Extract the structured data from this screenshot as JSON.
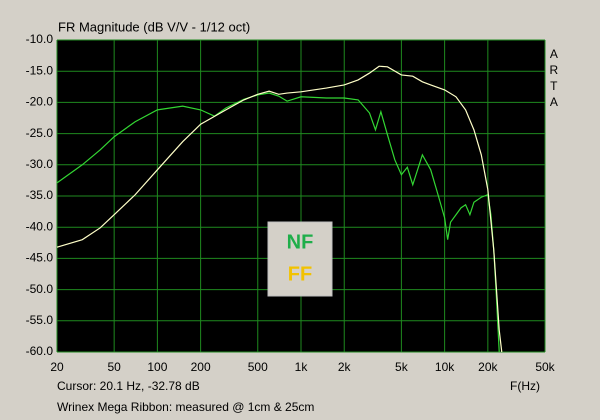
{
  "chart_data": {
    "type": "line",
    "title": "FR Magnitude (dB V/V - 1/12 oct)",
    "side_label": "ARTA",
    "x_label": "F(Hz)",
    "annotations": [
      "Cursor: 20.1 Hz, -32.78 dB",
      "Wrinex Mega Ribbon: measured @ 1cm & 25cm"
    ],
    "xscale": "log",
    "xlim": [
      20,
      50000
    ],
    "xticks": [
      20,
      50,
      100,
      200,
      500,
      {
        "value": 1000,
        "label": "1k"
      },
      {
        "value": 2000,
        "label": "2k"
      },
      {
        "value": 5000,
        "label": "5k"
      },
      {
        "value": 10000,
        "label": "10k"
      },
      {
        "value": 20000,
        "label": "20k"
      },
      {
        "value": 50000,
        "label": "50k"
      }
    ],
    "ylim": [
      -60,
      -10
    ],
    "yticks": [
      {
        "value": -60,
        "label": "-60.0"
      },
      {
        "value": -55,
        "label": "-55.0"
      },
      {
        "value": -50,
        "label": "-50.0"
      },
      {
        "value": -45,
        "label": "-45.0"
      },
      {
        "value": -40,
        "label": "-40.0"
      },
      {
        "value": -35,
        "label": "-35.0"
      },
      {
        "value": -30,
        "label": "-30.0"
      },
      {
        "value": -25,
        "label": "-25.0"
      },
      {
        "value": -20,
        "label": "-20.0"
      },
      {
        "value": -15,
        "label": "-15.0"
      },
      {
        "value": -10,
        "label": "-10.0"
      }
    ],
    "grid": true,
    "series": [
      {
        "name": "NF",
        "color": "#33d633",
        "label_color": "#1fae4a",
        "x": [
          20,
          30,
          40,
          50,
          70,
          100,
          150,
          200,
          250,
          300,
          400,
          500,
          600,
          700,
          800,
          1000,
          1500,
          2000,
          2500,
          3000,
          3300,
          3600,
          4000,
          4500,
          5000,
          5500,
          6000,
          7000,
          8000,
          9000,
          10000,
          10500,
          11000,
          12000,
          13000,
          14000,
          15000,
          16000,
          18000,
          20000,
          21000,
          22000,
          23000,
          24000
        ],
        "values": [
          -32.9,
          -30.0,
          -27.6,
          -25.5,
          -23.1,
          -21.2,
          -20.6,
          -21.2,
          -22.2,
          -20.9,
          -19.5,
          -18.8,
          -18.5,
          -19.0,
          -19.8,
          -19.1,
          -19.3,
          -19.3,
          -19.6,
          -21.7,
          -24.4,
          -21.5,
          -25.2,
          -29.2,
          -31.6,
          -30.4,
          -33.2,
          -28.4,
          -30.8,
          -34.8,
          -38.5,
          -42.0,
          -39.2,
          -38.0,
          -36.9,
          -36.4,
          -38.0,
          -36.0,
          -35.2,
          -34.8,
          -38.0,
          -43.7,
          -51.7,
          -60.0
        ]
      },
      {
        "name": "FF",
        "color": "#ffffc8",
        "label_color": "#f2c200",
        "x": [
          20,
          30,
          40,
          50,
          70,
          100,
          150,
          200,
          300,
          400,
          500,
          600,
          700,
          800,
          1000,
          1500,
          2000,
          2500,
          3000,
          3500,
          4000,
          5000,
          6000,
          7000,
          8000,
          10000,
          12000,
          14000,
          16000,
          18000,
          20000,
          22000,
          24000,
          25000
        ],
        "values": [
          -43.2,
          -42.0,
          -40.1,
          -38.0,
          -34.8,
          -30.8,
          -26.3,
          -23.5,
          -21.2,
          -19.6,
          -18.7,
          -18.2,
          -18.7,
          -18.5,
          -18.3,
          -17.7,
          -17.2,
          -16.4,
          -15.3,
          -14.2,
          -14.3,
          -15.6,
          -15.8,
          -16.7,
          -17.2,
          -18.0,
          -19.1,
          -21.2,
          -24.4,
          -28.4,
          -34.0,
          -43.7,
          -56.5,
          -60.0
        ]
      }
    ]
  }
}
